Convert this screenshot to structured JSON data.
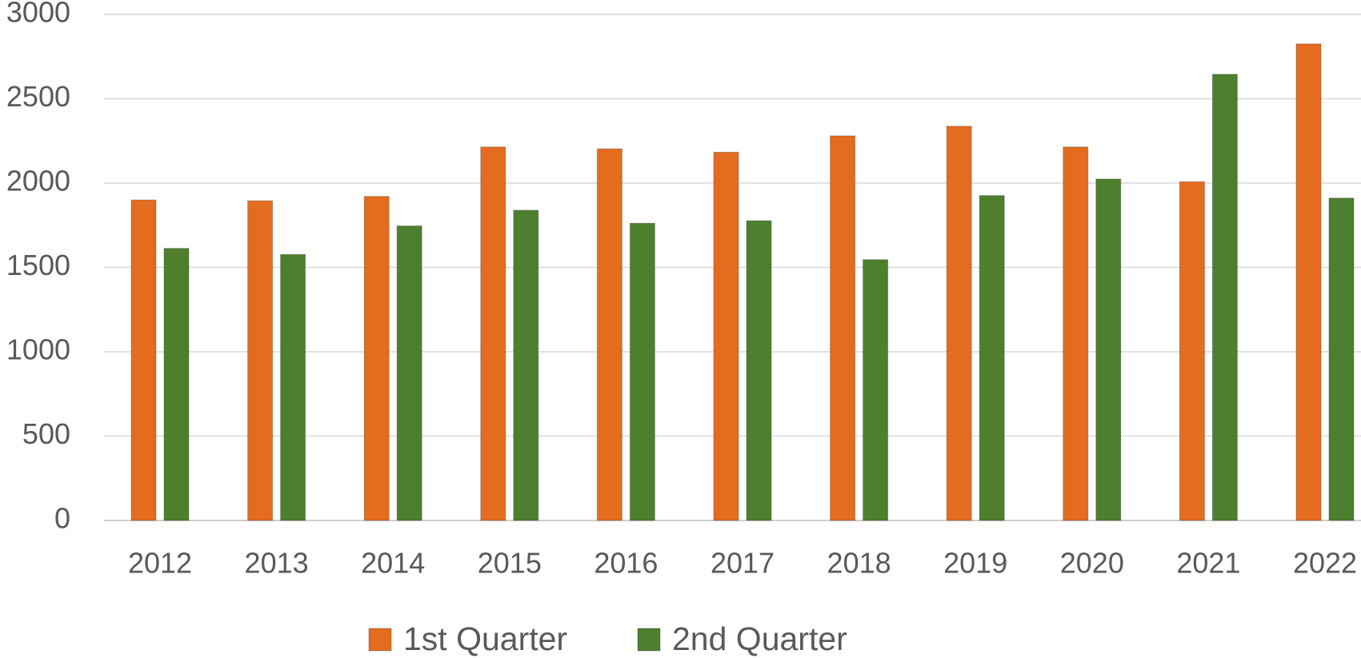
{
  "chart_data": {
    "type": "bar",
    "categories": [
      "2012",
      "2013",
      "2014",
      "2015",
      "2016",
      "2017",
      "2018",
      "2019",
      "2020",
      "2021",
      "2022"
    ],
    "series": [
      {
        "name": "1st Quarter",
        "color": "#e46c1f",
        "values": [
          1900,
          1895,
          1921,
          2214,
          2203,
          2183,
          2280,
          2337,
          2214,
          2008,
          2825
        ]
      },
      {
        "name": "2nd Quarter",
        "color": "#4e7f2e",
        "values": [
          1613,
          1577,
          1746,
          1839,
          1762,
          1777,
          1546,
          1926,
          2024,
          2645,
          1911
        ]
      }
    ],
    "ylim": [
      0,
      3000
    ],
    "yticks": [
      0,
      500,
      1000,
      1500,
      2000,
      2500,
      3000
    ],
    "grid": true,
    "legend": "bottom"
  }
}
